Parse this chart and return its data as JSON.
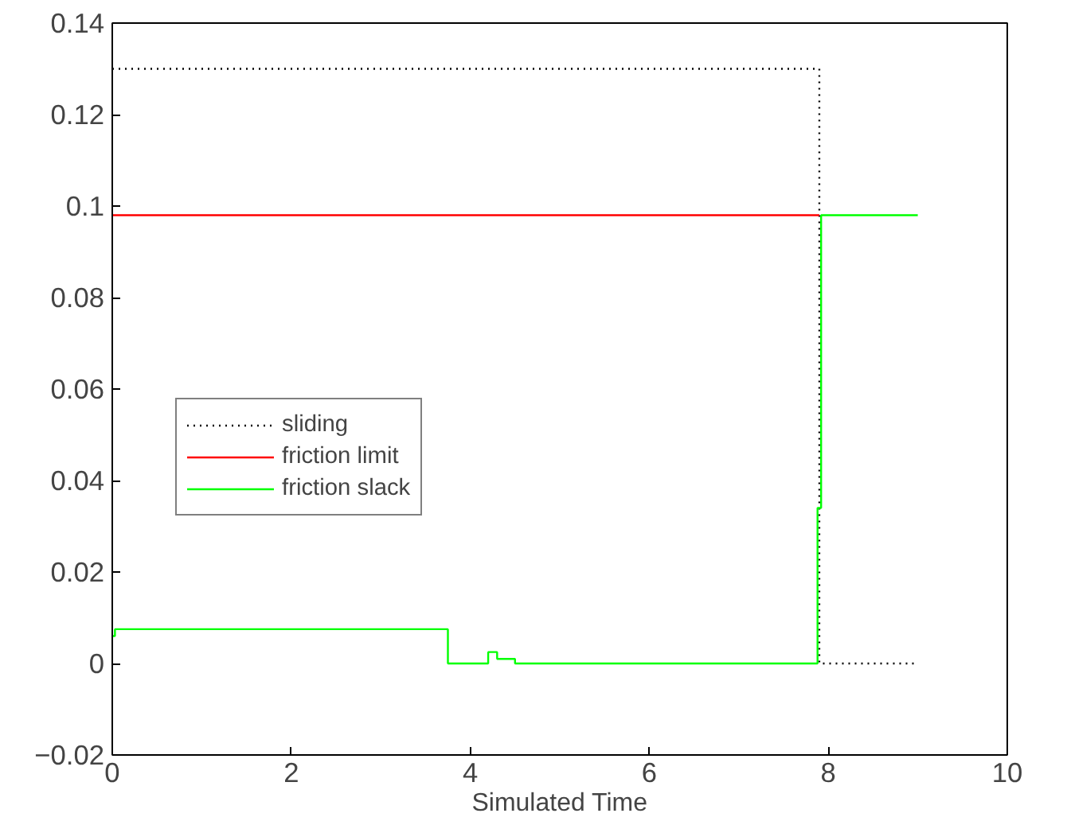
{
  "chart_data": {
    "type": "step",
    "xlabel": "Simulated Time",
    "xlim": [
      0,
      10
    ],
    "xticks": [
      0,
      2,
      4,
      6,
      8,
      10
    ],
    "ylim": [
      -0.02,
      0.14
    ],
    "yticks": [
      {
        "value": -0.02,
        "label": "−0.02"
      },
      0,
      0.02,
      0.04,
      0.06,
      0.08,
      0.1,
      0.12,
      0.14
    ],
    "grid": false,
    "legend": "left",
    "marker": "none",
    "series": [
      {
        "name": "sliding",
        "color": "#000000",
        "line_style": "dotted",
        "x": [
          0,
          7.9,
          9
        ],
        "values": [
          0.13,
          0,
          0
        ]
      },
      {
        "name": "friction limit",
        "color": "#ff0000",
        "line_style": "solid",
        "x": [
          0,
          7.9
        ],
        "values": [
          0.098,
          0.098
        ]
      },
      {
        "name": "friction slack",
        "color": "#00ff00",
        "line_style": "solid",
        "x": [
          0,
          0.03,
          3.75,
          4.2,
          4.3,
          4.5,
          7.88,
          7.92,
          9
        ],
        "values": [
          0.006,
          0.0075,
          0,
          0.0025,
          0.001,
          0,
          0.034,
          0.098,
          0.098
        ]
      }
    ]
  }
}
